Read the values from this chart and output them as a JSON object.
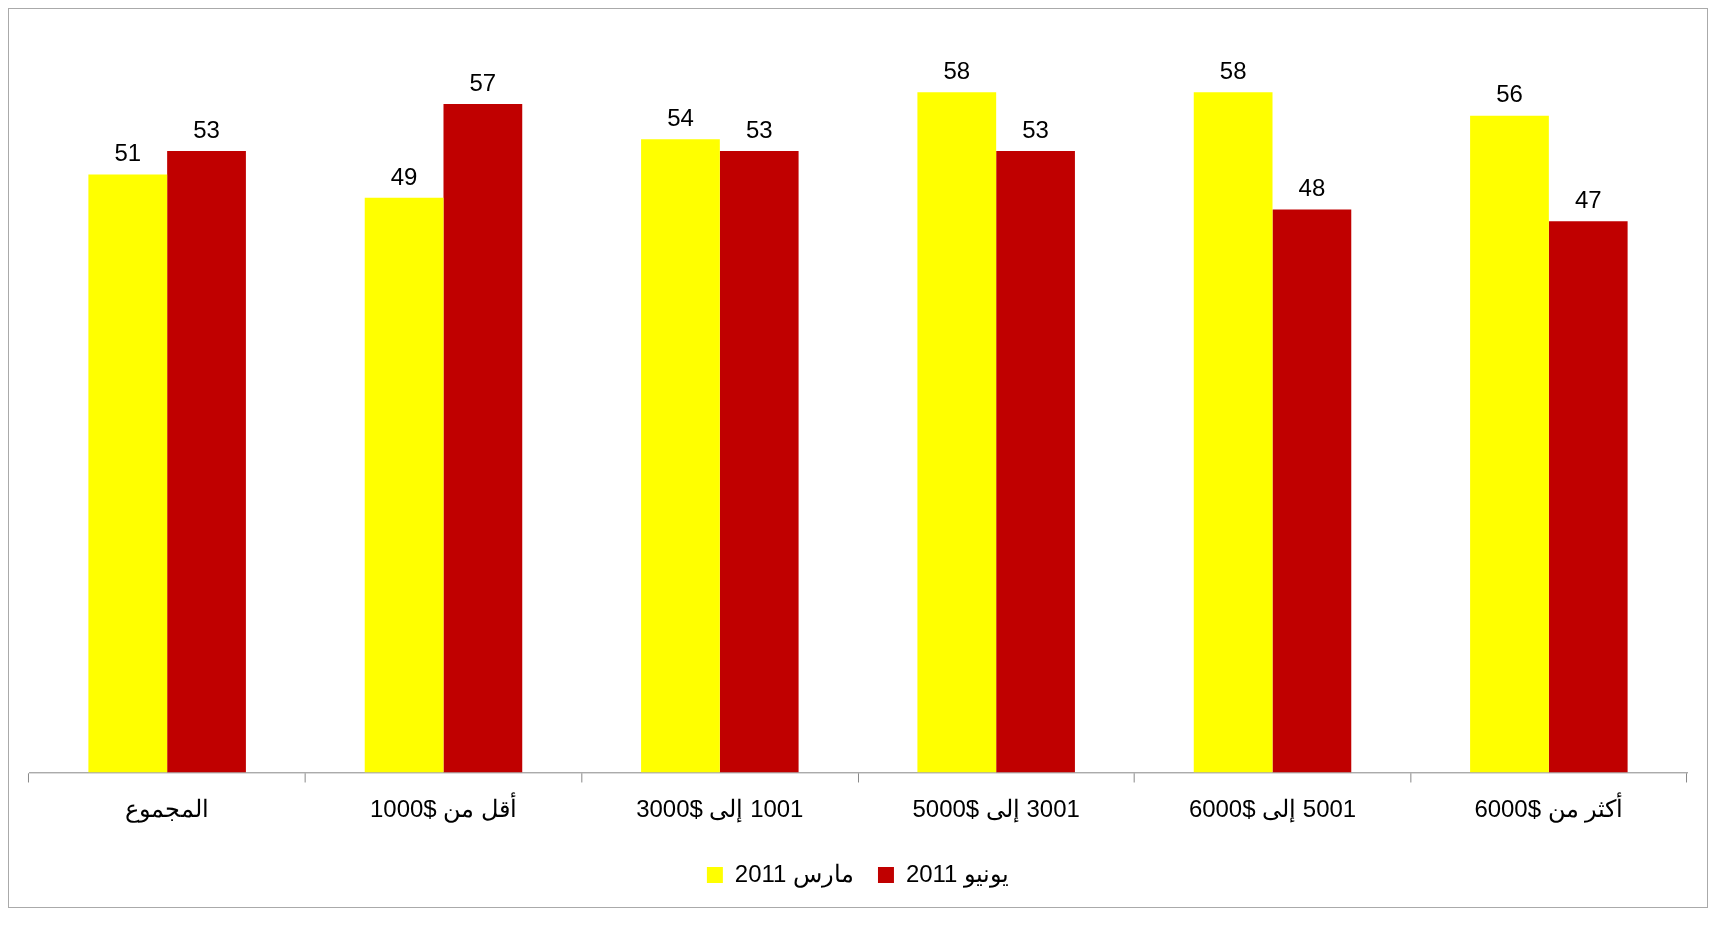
{
  "chart_data": {
    "type": "bar",
    "categories": [
      "المجموع",
      "أقل من $1000",
      "1001 إلى $3000",
      "3001 إلى $5000",
      "5001 إلى $6000",
      "أكثر من $6000"
    ],
    "series": [
      {
        "name": "مارس 2011",
        "color": "#ffff00",
        "values": [
          51,
          49,
          54,
          58,
          58,
          56
        ]
      },
      {
        "name": "يونيو 2011",
        "color": "#c00000",
        "values": [
          53,
          57,
          53,
          53,
          48,
          47
        ]
      }
    ],
    "data_labels": true,
    "legend": "bottom",
    "grid": false
  }
}
